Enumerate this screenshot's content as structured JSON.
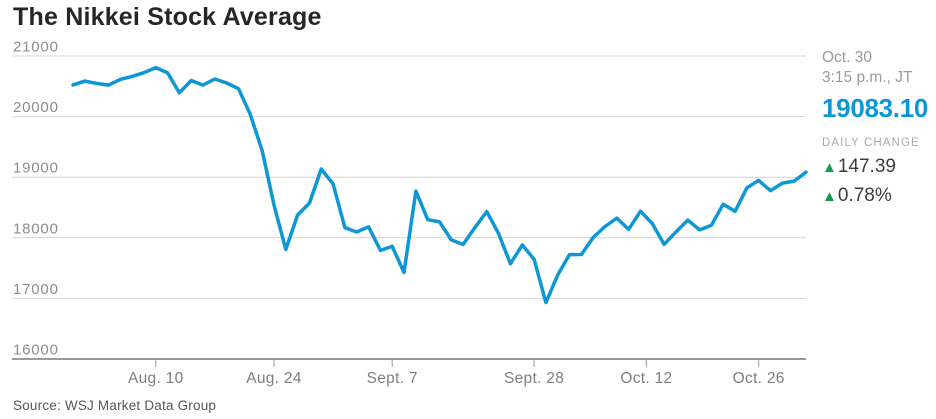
{
  "page": {
    "title": "The Nikkei Stock Average",
    "source": "Source: WSJ Market Data Group"
  },
  "quote": {
    "date": "Oct. 30",
    "time": "3:15 p.m., JT",
    "price": "19083.10",
    "daily_change_label": "DAILY CHANGE",
    "up_arrow": "▲",
    "change_abs": "147.39",
    "change_pct": "0.78%"
  },
  "colors": {
    "line": "#0d97d5",
    "price_text": "#0d97d5",
    "up_green": "#0f9b4a",
    "grid": "#d4d4d4",
    "axis": "#9a9a9a",
    "title_text": "#262626"
  },
  "chart_data": {
    "type": "line",
    "title": "The Nikkei Stock Average",
    "xlabel": "",
    "ylabel": "",
    "ylim": [
      16000,
      21000
    ],
    "y_ticks": [
      21000,
      20000,
      19000,
      18000,
      17000,
      16000
    ],
    "grid": "horizontal",
    "legend": "none",
    "x_tick_labels": [
      "Aug. 10",
      "Aug. 24",
      "Sept. 7",
      "Sept. 28",
      "Oct. 12",
      "Oct. 26"
    ],
    "x_tick_indices": [
      7,
      17,
      27,
      39,
      48.5,
      58
    ],
    "series": [
      {
        "name": "Nikkei Stock Average",
        "dates": [
          "Jul 30",
          "Jul 31",
          "Aug 3",
          "Aug 4",
          "Aug 5",
          "Aug 6",
          "Aug 7",
          "Aug 10",
          "Aug 11",
          "Aug 12",
          "Aug 13",
          "Aug 14",
          "Aug 17",
          "Aug 18",
          "Aug 19",
          "Aug 20",
          "Aug 21",
          "Aug 24",
          "Aug 25",
          "Aug 26",
          "Aug 27",
          "Aug 28",
          "Aug 31",
          "Sep 1",
          "Sep 2",
          "Sep 3",
          "Sep 4",
          "Sep 7",
          "Sep 8",
          "Sep 9",
          "Sep 10",
          "Sep 11",
          "Sep 14",
          "Sep 15",
          "Sep 16",
          "Sep 17",
          "Sep 18",
          "Sep 24",
          "Sep 25",
          "Sep 28",
          "Sep 29",
          "Sep 30",
          "Oct 1",
          "Oct 2",
          "Oct 5",
          "Oct 6",
          "Oct 7",
          "Oct 8",
          "Oct 9",
          "Oct 13",
          "Oct 14",
          "Oct 15",
          "Oct 16",
          "Oct 19",
          "Oct 20",
          "Oct 21",
          "Oct 22",
          "Oct 23",
          "Oct 26",
          "Oct 27",
          "Oct 28",
          "Oct 29",
          "Oct 30"
        ],
        "values": [
          20523,
          20585,
          20548,
          20520,
          20614,
          20664,
          20725,
          20809,
          20721,
          20393,
          20596,
          20519,
          20620,
          20554,
          20461,
          20034,
          19436,
          18541,
          17807,
          18377,
          18574,
          19136,
          18890,
          18166,
          18095,
          18182,
          17792,
          17860,
          17427,
          18771,
          18300,
          18264,
          17966,
          17890,
          18172,
          18432,
          18070,
          17572,
          17881,
          17645,
          16931,
          17388,
          17722,
          17725,
          18005,
          18186,
          18323,
          18141,
          18439,
          18235,
          17891,
          18097,
          18292,
          18131,
          18207,
          18554,
          18436,
          18825,
          18947,
          18777,
          18903,
          18936,
          19083.1
        ]
      }
    ],
    "last_point": {
      "date": "Oct. 30",
      "value": 19083.1
    }
  }
}
